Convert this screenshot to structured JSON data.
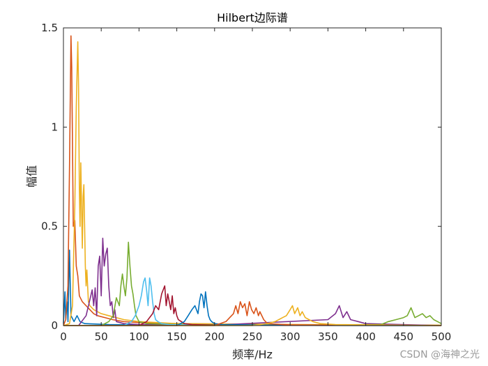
{
  "chart_data": {
    "type": "line",
    "title": "Hilbert边际谱",
    "xlabel": "频率/Hz",
    "ylabel": "幅值",
    "xlim": [
      0,
      500
    ],
    "ylim": [
      0,
      1.5
    ],
    "xticks": [
      "0",
      "50",
      "100",
      "150",
      "200",
      "250",
      "300",
      "350",
      "400",
      "450",
      "500"
    ],
    "yticks": [
      "0",
      "0.5",
      "1",
      "1.5"
    ],
    "grid": false,
    "legend": "none",
    "series": [
      {
        "color": "#0072BD",
        "x": [
          0,
          2,
          3,
          5,
          6,
          8,
          10,
          14,
          18,
          22,
          28,
          40,
          60,
          100,
          150,
          200,
          250,
          300,
          400,
          500
        ],
        "y": [
          0.01,
          0.17,
          0.03,
          0.12,
          0.02,
          0.38,
          0.05,
          0.02,
          0.05,
          0.02,
          0.01,
          0.008,
          0.005,
          0.004,
          0.003,
          0.002,
          0.002,
          0.001,
          0.001,
          0.0
        ]
      },
      {
        "color": "#D95319",
        "x": [
          0,
          3,
          6,
          8,
          10,
          11,
          13,
          15,
          17,
          19,
          21,
          25,
          30,
          35,
          40,
          45,
          55,
          65,
          80,
          100,
          150,
          200,
          300,
          400,
          500
        ],
        "y": [
          0.0,
          0.03,
          0.2,
          0.8,
          1.46,
          1.3,
          0.5,
          0.53,
          0.3,
          0.25,
          0.15,
          0.12,
          0.1,
          0.08,
          0.06,
          0.05,
          0.04,
          0.03,
          0.02,
          0.015,
          0.01,
          0.008,
          0.005,
          0.003,
          0.001
        ]
      },
      {
        "color": "#EDB120",
        "x": [
          0,
          8,
          12,
          15,
          17,
          19,
          20,
          21,
          22,
          23,
          24,
          25,
          26,
          27,
          28,
          29,
          30,
          31,
          33,
          35,
          40,
          50,
          60,
          80,
          100,
          150,
          200,
          300,
          400,
          500
        ],
        "y": [
          0.0,
          0.01,
          0.1,
          0.6,
          1.1,
          1.43,
          1.2,
          0.7,
          0.5,
          0.82,
          0.6,
          0.39,
          0.65,
          0.71,
          0.5,
          0.3,
          0.2,
          0.28,
          0.12,
          0.1,
          0.08,
          0.06,
          0.05,
          0.03,
          0.02,
          0.01,
          0.008,
          0.005,
          0.003,
          0.002
        ]
      },
      {
        "color": "#7E2F8E",
        "x": [
          0,
          20,
          30,
          35,
          38,
          40,
          42,
          44,
          46,
          48,
          50,
          52,
          54,
          56,
          58,
          60,
          62,
          64,
          66,
          68,
          70,
          80,
          100,
          200,
          350,
          360,
          365,
          370,
          375,
          380,
          390,
          400,
          500
        ],
        "y": [
          0.0,
          0.0,
          0.05,
          0.13,
          0.18,
          0.1,
          0.19,
          0.05,
          0.3,
          0.35,
          0.15,
          0.44,
          0.3,
          0.36,
          0.39,
          0.2,
          0.1,
          0.12,
          0.04,
          0.08,
          0.02,
          0.01,
          0.005,
          0.002,
          0.03,
          0.06,
          0.1,
          0.04,
          0.07,
          0.03,
          0.02,
          0.01,
          0.0
        ]
      },
      {
        "color": "#77AC30",
        "x": [
          0,
          50,
          60,
          66,
          70,
          74,
          76,
          78,
          80,
          82,
          84,
          86,
          88,
          90,
          92,
          94,
          96,
          100,
          110,
          150,
          300,
          420,
          430,
          440,
          450,
          455,
          460,
          465,
          470,
          475,
          480,
          485,
          490,
          495,
          500
        ],
        "y": [
          0.0,
          0.0,
          0.02,
          0.05,
          0.14,
          0.1,
          0.2,
          0.26,
          0.2,
          0.15,
          0.24,
          0.42,
          0.3,
          0.2,
          0.16,
          0.1,
          0.05,
          0.02,
          0.01,
          0.005,
          0.002,
          0.005,
          0.02,
          0.03,
          0.04,
          0.05,
          0.09,
          0.04,
          0.05,
          0.06,
          0.04,
          0.05,
          0.03,
          0.02,
          0.01
        ]
      },
      {
        "color": "#4DBEEE",
        "x": [
          0,
          80,
          90,
          95,
          100,
          103,
          106,
          108,
          110,
          112,
          114,
          116,
          118,
          120,
          122,
          125,
          130,
          140,
          200,
          500
        ],
        "y": [
          0.0,
          0.0,
          0.02,
          0.05,
          0.1,
          0.15,
          0.22,
          0.24,
          0.18,
          0.1,
          0.24,
          0.2,
          0.12,
          0.06,
          0.03,
          0.02,
          0.01,
          0.005,
          0.002,
          0.0
        ]
      },
      {
        "color": "#A2142F",
        "x": [
          0,
          100,
          110,
          118,
          122,
          126,
          130,
          134,
          136,
          138,
          140,
          142,
          144,
          146,
          148,
          150,
          152,
          156,
          160,
          170,
          200,
          500
        ],
        "y": [
          0.0,
          0.0,
          0.02,
          0.06,
          0.1,
          0.08,
          0.16,
          0.2,
          0.1,
          0.16,
          0.12,
          0.08,
          0.15,
          0.06,
          0.09,
          0.05,
          0.03,
          0.02,
          0.01,
          0.005,
          0.002,
          0.0
        ]
      },
      {
        "color": "#0072BD",
        "x": [
          0,
          150,
          160,
          165,
          170,
          174,
          178,
          180,
          182,
          184,
          186,
          188,
          190,
          192,
          194,
          196,
          200,
          210,
          300,
          500
        ],
        "y": [
          0.0,
          0.0,
          0.02,
          0.05,
          0.08,
          0.1,
          0.06,
          0.12,
          0.16,
          0.15,
          0.09,
          0.17,
          0.1,
          0.05,
          0.03,
          0.02,
          0.01,
          0.005,
          0.001,
          0.0
        ]
      },
      {
        "color": "#D95319",
        "x": [
          0,
          200,
          215,
          220,
          225,
          228,
          231,
          234,
          237,
          240,
          243,
          246,
          249,
          252,
          255,
          258,
          260,
          265,
          270,
          300,
          500
        ],
        "y": [
          0.0,
          0.0,
          0.02,
          0.04,
          0.06,
          0.1,
          0.06,
          0.12,
          0.09,
          0.11,
          0.05,
          0.12,
          0.08,
          0.06,
          0.09,
          0.05,
          0.07,
          0.03,
          0.01,
          0.003,
          0.0
        ]
      },
      {
        "color": "#EDB120",
        "x": [
          0,
          250,
          270,
          280,
          285,
          290,
          295,
          300,
          303,
          306,
          310,
          313,
          316,
          320,
          325,
          330,
          340,
          360,
          500
        ],
        "y": [
          0.0,
          0.0,
          0.01,
          0.02,
          0.03,
          0.04,
          0.05,
          0.08,
          0.1,
          0.06,
          0.09,
          0.05,
          0.07,
          0.04,
          0.03,
          0.02,
          0.01,
          0.005,
          0.0
        ]
      }
    ]
  },
  "watermark": "CSDN @海神之光"
}
